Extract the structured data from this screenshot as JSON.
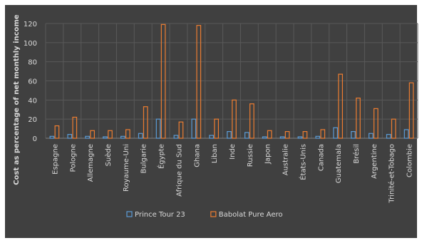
{
  "chart_data": {
    "type": "bar",
    "title": "",
    "xlabel": "",
    "ylabel": "Cost as percentage of net monthly income",
    "ylim": [
      0,
      120
    ],
    "yticks": [
      0,
      20,
      40,
      60,
      80,
      100,
      120
    ],
    "grid": true,
    "legend_position": "bottom",
    "categories": [
      "Espagne",
      "Pologne",
      "Allemagne",
      "Suède",
      "Royaume-Uni",
      "Bulgarie",
      "Égypte",
      "Afrique du Sud",
      "Ghana",
      "Liban",
      "Inde",
      "Russie",
      "Japon",
      "Australie",
      "États-Unis",
      "Canada",
      "Guatemala",
      "Brésil",
      "Argentine",
      "Trinité-et-Tobago",
      "Colombie"
    ],
    "series": [
      {
        "name": "Prince Tour 23",
        "color": "#5b9bd5",
        "values": [
          2,
          4,
          2,
          1.5,
          2,
          5,
          20,
          3,
          20,
          3,
          7,
          6,
          1.5,
          1.5,
          1.5,
          2,
          11,
          7,
          5,
          4,
          9
        ]
      },
      {
        "name": "Babolat Pure Aero",
        "color": "#ed7d31",
        "values": [
          13,
          22,
          8,
          8,
          9,
          33,
          119,
          17,
          118,
          20,
          40,
          36,
          8,
          7,
          7,
          9,
          67,
          42,
          31,
          20,
          58
        ]
      }
    ]
  }
}
